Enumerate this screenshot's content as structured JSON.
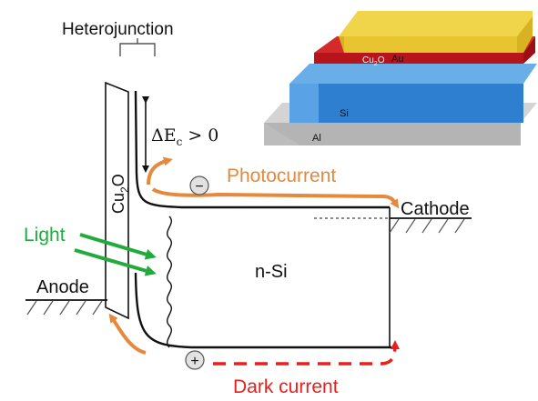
{
  "labels": {
    "heterojunction": "Heterojunction",
    "delta_ec": "ΔE",
    "delta_ec_sub": "c",
    "delta_ec_rel": "> 0",
    "cu2o_base": "Cu",
    "cu2o_sub": "2",
    "cu2o_end": "O",
    "light": "Light",
    "anode": "Anode",
    "cathode": "Cathode",
    "nsi": "n-Si",
    "photocurrent": "Photocurrent",
    "dark_current": "Dark current",
    "electron_symbol": "−",
    "hole_symbol": "+"
  },
  "stack": {
    "au": "Au",
    "cu2o_base": "Cu",
    "cu2o_sub": "2",
    "cu2o_end": "O",
    "si": "Si",
    "al": "Al"
  },
  "colors": {
    "photocurrent": "#e6893c",
    "dark_current": "#e8201c",
    "light": "#22aa3c",
    "au": "#e8c430",
    "cu2o_layer": "#b8141c",
    "si_layer": "#2f7fd0",
    "al_layer": "#b4b4b4"
  }
}
